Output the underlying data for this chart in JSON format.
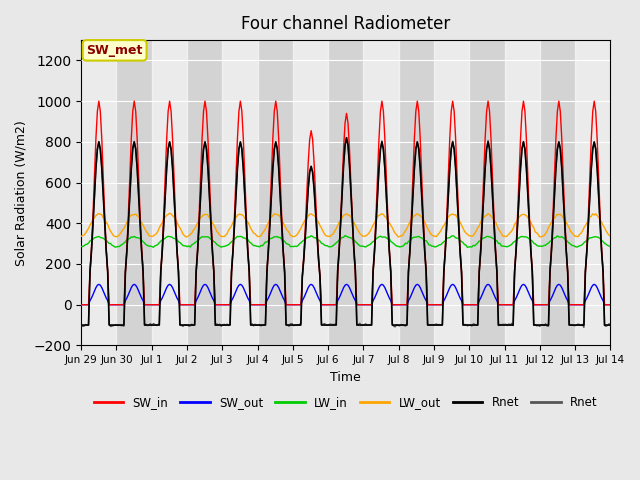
{
  "title": "Four channel Radiometer",
  "xlabel": "Time",
  "ylabel": "Solar Radiation (W/m2)",
  "ylim": [
    -200,
    1300
  ],
  "yticks": [
    -200,
    0,
    200,
    400,
    600,
    800,
    1000,
    1200
  ],
  "annotation": "SW_met",
  "bg_color": "#e8e8e8",
  "plot_bg_color": "#d3d3d3",
  "xtick_labels": [
    "Jun 29",
    "Jun 30",
    "Jul 1",
    "Jul 2",
    "Jul 3",
    "Jul 4",
    "Jul 5",
    "Jul 6",
    "Jul 7",
    "Jul 8",
    "Jul 9",
    "Jul 10",
    "Jul 11",
    "Jul 12",
    "Jul 13",
    "Jul 14"
  ],
  "n_days": 15,
  "colors": {
    "SW_in": "#ff0000",
    "SW_out": "#0000ff",
    "LW_in": "#00cc00",
    "LW_out": "#ffa500",
    "Rnet": "#000000",
    "Rnet2": "#555555"
  },
  "figsize": [
    6.4,
    4.8
  ],
  "dpi": 100
}
